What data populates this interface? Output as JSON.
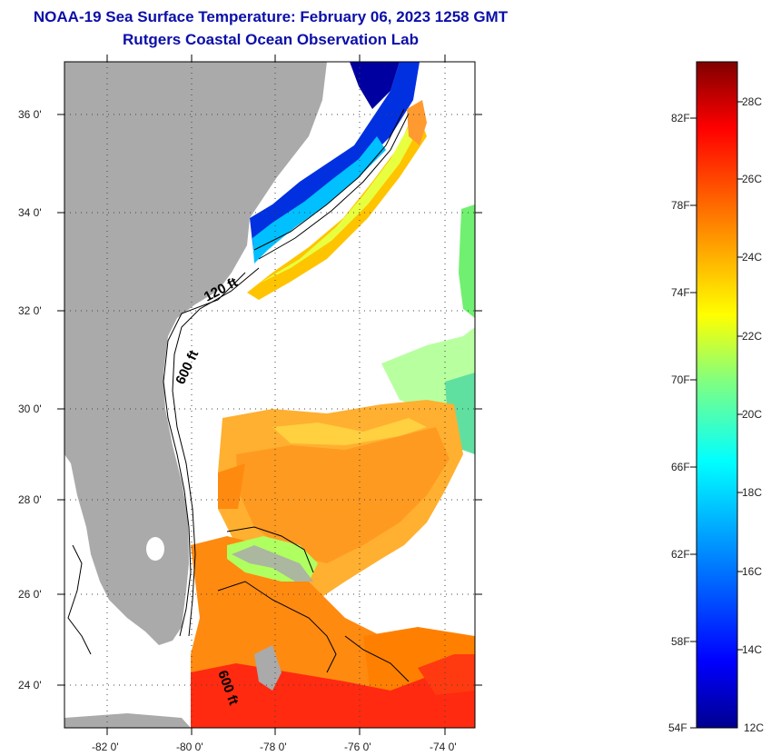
{
  "title": {
    "line1": "NOAA-19 Sea Surface Temperature:  February 06, 2023 1258 GMT",
    "line2": "Rutgers Coastal Ocean Observation Lab"
  },
  "map": {
    "lat_labels": [
      "36 0'",
      "34 0'",
      "32 0'",
      "30 0'",
      "28 0'",
      "26 0'",
      "24 0'"
    ],
    "lon_labels": [
      "-82 0'",
      "-80 0'",
      "-78 0'",
      "-76 0'",
      "-74 0'"
    ],
    "contours": {
      "isobath_120": "120 ft",
      "isobath_600": "600 ft",
      "isobath_600_south": "600 ft"
    },
    "colors": {
      "land": "#aaaaaa",
      "no_data": "#ffffff"
    }
  },
  "colorbar": {
    "fahrenheit_labels": [
      "82F",
      "78F",
      "74F",
      "70F",
      "66F",
      "62F",
      "58F",
      "54F"
    ],
    "celsius_labels": [
      "28C",
      "26C",
      "24C",
      "22C",
      "20C",
      "18C",
      "16C",
      "14C",
      "12C"
    ],
    "range_c": [
      12,
      29.5
    ],
    "colors": [
      "#00008f",
      "#0000ff",
      "#0080ff",
      "#00ffff",
      "#80ff80",
      "#ffff00",
      "#ff8000",
      "#ff0000",
      "#800000"
    ]
  }
}
